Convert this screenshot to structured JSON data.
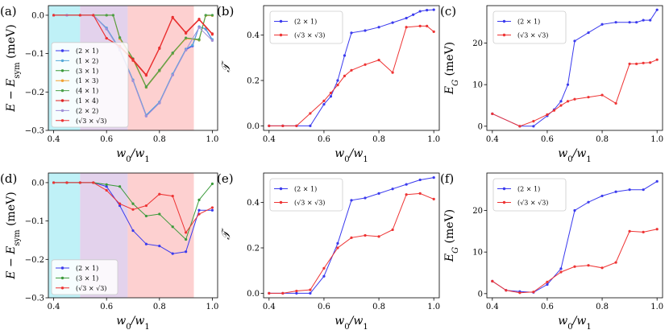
{
  "colors": {
    "s2x1": "#3a3aee",
    "s1x2": "#56a8d8",
    "s3x1": "#3a9a3a",
    "s1x3": "#f0a030",
    "s4x1": "#4aa04a",
    "s1x4": "#dd2222",
    "s2x2": "#a090d8",
    "sr3": "#ee3333",
    "band_cyan": "#bff1f7",
    "band_purple": "#e3d2ec",
    "band_red": "#fdd0d0"
  },
  "chart_data": [
    {
      "id": "a",
      "panel_label": "(a)",
      "type": "line",
      "xlabel": "w0/w1",
      "ylabel": "E − E_sym (meV)",
      "xlim": [
        0.38,
        1.02
      ],
      "ylim": [
        -0.3,
        0.025
      ],
      "xticks": [
        0.4,
        0.6,
        0.8,
        1.0
      ],
      "xtick_labels": [
        "0.4",
        "0.6",
        "0.8",
        "1.0"
      ],
      "yticks": [
        0.0,
        -0.1,
        -0.2,
        -0.3
      ],
      "ytick_labels": [
        "0.0",
        "−0.1",
        "−0.2",
        "−0.3"
      ],
      "bands": [
        {
          "from": 0.38,
          "to": 0.5,
          "color": "band_cyan"
        },
        {
          "from": 0.5,
          "to": 0.68,
          "color": "band_purple"
        },
        {
          "from": 0.68,
          "to": 0.93,
          "color": "band_red"
        }
      ],
      "legend_pos": "lower-left",
      "series": [
        {
          "name": "(2 × 1)",
          "color": "s2x1",
          "x": [
            0.4,
            0.45,
            0.5,
            0.55,
            0.6,
            0.65,
            0.7,
            0.75,
            0.8,
            0.85,
            0.9,
            0.925,
            0.95,
            0.975,
            1.0
          ],
          "y": [
            0,
            0,
            0,
            0,
            -0.035,
            -0.09,
            -0.17,
            -0.262,
            -0.228,
            -0.155,
            -0.09,
            -0.08,
            -0.03,
            -0.036,
            -0.065
          ]
        },
        {
          "name": "(1 × 2)",
          "color": "s1x2",
          "x": [
            0.4,
            0.45,
            0.5,
            0.55,
            0.6,
            0.65,
            0.7,
            0.75,
            0.8,
            0.85,
            0.9,
            0.925,
            0.95,
            0.975,
            1.0
          ],
          "y": [
            0,
            0,
            0,
            0,
            -0.033,
            -0.088,
            -0.168,
            -0.26,
            -0.226,
            -0.153,
            -0.088,
            -0.078,
            -0.03,
            -0.035,
            -0.063
          ]
        },
        {
          "name": "(3 × 1)",
          "color": "s3x1",
          "x": [
            0.4,
            0.5,
            0.55,
            0.6,
            0.625,
            0.65,
            0.7,
            0.75,
            0.8,
            0.85,
            0.9,
            0.95,
            0.975,
            1.0
          ],
          "y": [
            0,
            0,
            0,
            0,
            0,
            -0.06,
            -0.115,
            -0.188,
            -0.145,
            -0.1,
            -0.06,
            -0.065,
            0,
            0
          ]
        },
        {
          "name": "(1 × 3)",
          "color": "s1x3",
          "x": [
            0.4,
            0.5,
            0.55,
            0.6,
            0.625,
            0.65,
            0.7,
            0.75,
            0.8,
            0.85,
            0.9,
            0.95,
            0.975,
            1.0
          ],
          "y": [
            0,
            0,
            0,
            0,
            0,
            -0.061,
            -0.116,
            -0.187,
            -0.144,
            -0.099,
            -0.061,
            -0.064,
            -0.001,
            -0.001
          ]
        },
        {
          "name": "(4 × 1)",
          "color": "s4x1",
          "x": [
            0.4,
            0.5,
            0.55,
            0.6,
            0.625,
            0.65,
            0.7,
            0.75,
            0.8,
            0.85,
            0.9,
            0.95,
            0.975,
            1.0
          ],
          "y": [
            0,
            0,
            0,
            0,
            0,
            -0.058,
            -0.113,
            -0.186,
            -0.143,
            -0.098,
            -0.059,
            -0.063,
            0,
            0
          ]
        },
        {
          "name": "(1 × 4)",
          "color": "s1x4",
          "x": [
            0.4,
            0.5,
            0.55,
            0.6,
            0.65,
            0.7,
            0.75,
            0.8,
            0.85,
            0.9,
            0.95,
            1.0
          ],
          "y": [
            0,
            0,
            0,
            -0.06,
            -0.08,
            -0.115,
            -0.155,
            -0.085,
            -0.005,
            -0.045,
            -0.01,
            -0.048
          ]
        },
        {
          "name": "(2 × 2)",
          "color": "s2x2",
          "x": [
            0.4,
            0.45,
            0.5,
            0.55,
            0.6,
            0.65,
            0.7,
            0.75,
            0.8,
            0.85,
            0.9,
            0.95,
            1.0
          ],
          "y": [
            0,
            0,
            0,
            0,
            -0.036,
            -0.091,
            -0.171,
            -0.263,
            -0.229,
            -0.156,
            -0.091,
            -0.032,
            -0.066
          ]
        },
        {
          "name": "(√3 × √3)",
          "color": "sr3",
          "x": [
            0.4,
            0.5,
            0.55,
            0.6,
            0.65,
            0.7,
            0.75,
            0.8,
            0.85,
            0.9,
            0.95,
            1.0
          ],
          "y": [
            0,
            0,
            0,
            -0.06,
            -0.082,
            -0.118,
            -0.157,
            -0.087,
            -0.007,
            -0.047,
            -0.012,
            -0.05
          ]
        }
      ]
    },
    {
      "id": "b",
      "panel_label": "(b)",
      "type": "line",
      "xlabel": "w0/w1",
      "ylabel": "𝒯",
      "xlim": [
        0.38,
        1.02
      ],
      "ylim": [
        -0.02,
        0.53
      ],
      "xticks": [
        0.4,
        0.6,
        0.8,
        1.0
      ],
      "xtick_labels": [
        "0.4",
        "0.6",
        "0.8",
        "1.0"
      ],
      "yticks": [
        0.0,
        0.2,
        0.4
      ],
      "ytick_labels": [
        "0.0",
        "0.2",
        "0.4"
      ],
      "legend_pos": "top-left",
      "series": [
        {
          "name": "(2 × 1)",
          "color": "s2x1",
          "x": [
            0.4,
            0.45,
            0.5,
            0.55,
            0.6,
            0.625,
            0.65,
            0.675,
            0.7,
            0.75,
            0.8,
            0.85,
            0.9,
            0.925,
            0.95,
            0.975,
            1.0
          ],
          "y": [
            0,
            0,
            0,
            0,
            0.095,
            0.13,
            0.2,
            0.31,
            0.41,
            0.42,
            0.435,
            0.455,
            0.475,
            0.49,
            0.505,
            0.51,
            0.512
          ]
        },
        {
          "name": "(√3 × √3)",
          "color": "sr3",
          "x": [
            0.4,
            0.45,
            0.5,
            0.55,
            0.6,
            0.625,
            0.65,
            0.675,
            0.7,
            0.75,
            0.8,
            0.85,
            0.9,
            0.95,
            0.975,
            1.0
          ],
          "y": [
            0,
            0,
            0,
            0.055,
            0.11,
            0.145,
            0.18,
            0.22,
            0.245,
            0.27,
            0.29,
            0.235,
            0.435,
            0.44,
            0.44,
            0.415
          ]
        }
      ]
    },
    {
      "id": "c",
      "panel_label": "(c)",
      "type": "line",
      "xlabel": "w0/w1",
      "ylabel": "E_G (meV)",
      "xlim": [
        0.38,
        1.02
      ],
      "ylim": [
        -1,
        29
      ],
      "xticks": [
        0.4,
        0.6,
        0.8,
        1.0
      ],
      "xtick_labels": [
        "0.4",
        "0.6",
        "0.8",
        "1.0"
      ],
      "yticks": [
        0,
        10,
        20
      ],
      "ytick_labels": [
        "0",
        "10",
        "20"
      ],
      "legend_pos": "top-left",
      "series": [
        {
          "name": "(2 × 1)",
          "color": "s2x1",
          "x": [
            0.4,
            0.5,
            0.55,
            0.6,
            0.625,
            0.65,
            0.675,
            0.7,
            0.75,
            0.8,
            0.85,
            0.9,
            0.925,
            0.95,
            0.975,
            1.0
          ],
          "y": [
            3,
            0,
            0,
            2.5,
            4,
            6,
            10,
            20.5,
            22.5,
            24.5,
            25,
            25,
            25,
            25.5,
            25.5,
            28
          ]
        },
        {
          "name": "(√3 × √3)",
          "color": "sr3",
          "x": [
            0.4,
            0.5,
            0.55,
            0.6,
            0.625,
            0.65,
            0.675,
            0.7,
            0.75,
            0.8,
            0.85,
            0.9,
            0.925,
            0.95,
            0.975,
            1.0
          ],
          "y": [
            3,
            0,
            1.2,
            2.8,
            3.8,
            5,
            6,
            6.5,
            7,
            7.5,
            5.5,
            15,
            15,
            15.2,
            15.3,
            16
          ]
        }
      ]
    },
    {
      "id": "d",
      "panel_label": "(d)",
      "type": "line",
      "xlabel": "w0/w1",
      "ylabel": "E − E_sym (meV)",
      "xlim": [
        0.38,
        1.02
      ],
      "ylim": [
        -0.3,
        0.025
      ],
      "xticks": [
        0.4,
        0.6,
        0.8,
        1.0
      ],
      "xtick_labels": [
        "0.4",
        "0.6",
        "0.8",
        "1.0"
      ],
      "yticks": [
        0.0,
        -0.1,
        -0.2,
        -0.3
      ],
      "ytick_labels": [
        "0.0",
        "−0.1",
        "−0.2",
        "−0.3"
      ],
      "bands": [
        {
          "from": 0.38,
          "to": 0.5,
          "color": "band_cyan"
        },
        {
          "from": 0.5,
          "to": 0.68,
          "color": "band_purple"
        },
        {
          "from": 0.68,
          "to": 0.93,
          "color": "band_red"
        }
      ],
      "legend_pos": "lower-left",
      "series": [
        {
          "name": "(2 × 1)",
          "color": "s2x1",
          "x": [
            0.4,
            0.45,
            0.5,
            0.55,
            0.6,
            0.65,
            0.7,
            0.75,
            0.8,
            0.85,
            0.9,
            0.95,
            1.0
          ],
          "y": [
            0,
            0,
            0,
            0,
            -0.01,
            -0.06,
            -0.125,
            -0.16,
            -0.165,
            -0.185,
            -0.18,
            -0.072,
            -0.072
          ]
        },
        {
          "name": "(3 × 1)",
          "color": "s3x1",
          "x": [
            0.4,
            0.45,
            0.5,
            0.55,
            0.6,
            0.65,
            0.7,
            0.75,
            0.8,
            0.85,
            0.9,
            0.95,
            1.0
          ],
          "y": [
            0,
            0,
            0,
            0,
            -0.005,
            -0.01,
            -0.055,
            -0.087,
            -0.082,
            -0.115,
            -0.148,
            -0.045,
            -0.003
          ]
        },
        {
          "name": "(√3 × √3)",
          "color": "sr3",
          "x": [
            0.4,
            0.45,
            0.5,
            0.55,
            0.6,
            0.65,
            0.7,
            0.75,
            0.8,
            0.85,
            0.9,
            0.95,
            1.0
          ],
          "y": [
            0,
            0,
            0,
            0,
            -0.02,
            -0.055,
            -0.07,
            -0.06,
            -0.03,
            -0.035,
            -0.13,
            -0.082,
            -0.065
          ]
        }
      ]
    },
    {
      "id": "e",
      "panel_label": "(e)",
      "type": "line",
      "xlabel": "w0/w1",
      "ylabel": "𝒯",
      "xlim": [
        0.38,
        1.02
      ],
      "ylim": [
        -0.02,
        0.53
      ],
      "xticks": [
        0.4,
        0.6,
        0.8,
        1.0
      ],
      "xtick_labels": [
        "0.4",
        "0.6",
        "0.8",
        "1.0"
      ],
      "yticks": [
        0.0,
        0.2,
        0.4
      ],
      "ytick_labels": [
        "0.0",
        "0.2",
        "0.4"
      ],
      "legend_pos": "top-left",
      "series": [
        {
          "name": "(2 × 1)",
          "color": "s2x1",
          "x": [
            0.4,
            0.45,
            0.5,
            0.55,
            0.6,
            0.65,
            0.7,
            0.75,
            0.8,
            0.85,
            0.9,
            0.95,
            1.0
          ],
          "y": [
            0,
            0,
            0,
            0,
            0.075,
            0.22,
            0.41,
            0.42,
            0.44,
            0.46,
            0.48,
            0.5,
            0.51
          ]
        },
        {
          "name": "(√3 × √3)",
          "color": "sr3",
          "x": [
            0.4,
            0.45,
            0.5,
            0.55,
            0.6,
            0.65,
            0.7,
            0.75,
            0.8,
            0.85,
            0.9,
            0.95,
            1.0
          ],
          "y": [
            0,
            0,
            0.01,
            0.015,
            0.11,
            0.2,
            0.245,
            0.255,
            0.25,
            0.28,
            0.435,
            0.44,
            0.415
          ]
        }
      ]
    },
    {
      "id": "f",
      "panel_label": "(f)",
      "type": "line",
      "xlabel": "w0/w1",
      "ylabel": "E_G (meV)",
      "xlim": [
        0.38,
        1.02
      ],
      "ylim": [
        -1,
        29
      ],
      "xticks": [
        0.4,
        0.6,
        0.8,
        1.0
      ],
      "xtick_labels": [
        "0.4",
        "0.6",
        "0.8",
        "1.0"
      ],
      "yticks": [
        0,
        10,
        20
      ],
      "ytick_labels": [
        "0",
        "10",
        "20"
      ],
      "legend_pos": "top-left",
      "series": [
        {
          "name": "(2 × 1)",
          "color": "s2x1",
          "x": [
            0.4,
            0.45,
            0.5,
            0.55,
            0.6,
            0.65,
            0.7,
            0.75,
            0.8,
            0.85,
            0.9,
            0.95,
            1.0
          ],
          "y": [
            3,
            0.8,
            0.5,
            0.3,
            2.2,
            6,
            20,
            22,
            23.5,
            24.5,
            25,
            25,
            27
          ]
        },
        {
          "name": "(√3 × √3)",
          "color": "sr3",
          "x": [
            0.4,
            0.45,
            0.5,
            0.55,
            0.6,
            0.65,
            0.7,
            0.75,
            0.8,
            0.85,
            0.9,
            0.95,
            1.0
          ],
          "y": [
            3,
            0.8,
            0.2,
            0.4,
            2.8,
            5.2,
            6.5,
            6.8,
            6.2,
            7.5,
            15,
            14.8,
            15.5
          ]
        }
      ]
    }
  ]
}
